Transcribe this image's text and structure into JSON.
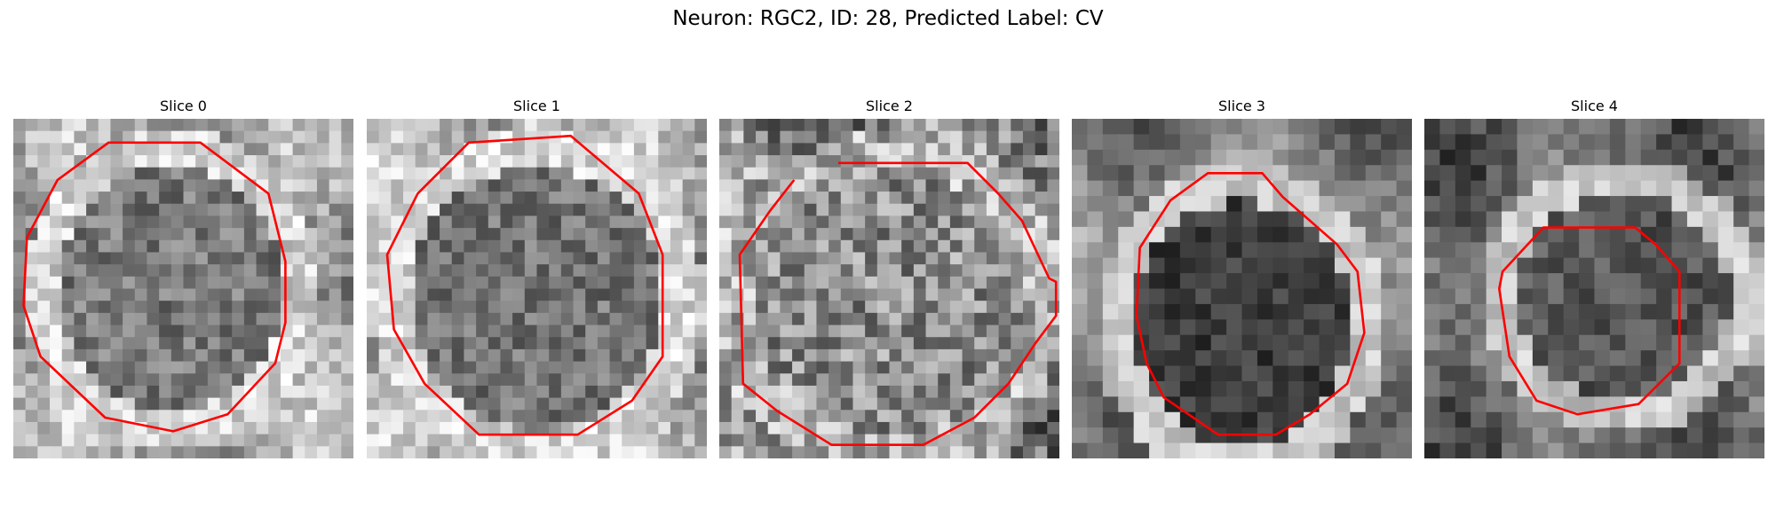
{
  "figure": {
    "title": "Neuron: RGC2, ID: 28, Predicted Label: CV"
  },
  "panels": [
    {
      "title": "Slice 0",
      "contour_color": "#ff0000"
    },
    {
      "title": "Slice 1",
      "contour_color": "#ff0000"
    },
    {
      "title": "Slice 2",
      "contour_color": "#ff0000"
    },
    {
      "title": "Slice 3",
      "contour_color": "#ff0000"
    },
    {
      "title": "Slice 4",
      "contour_color": "#ff0000"
    }
  ]
}
